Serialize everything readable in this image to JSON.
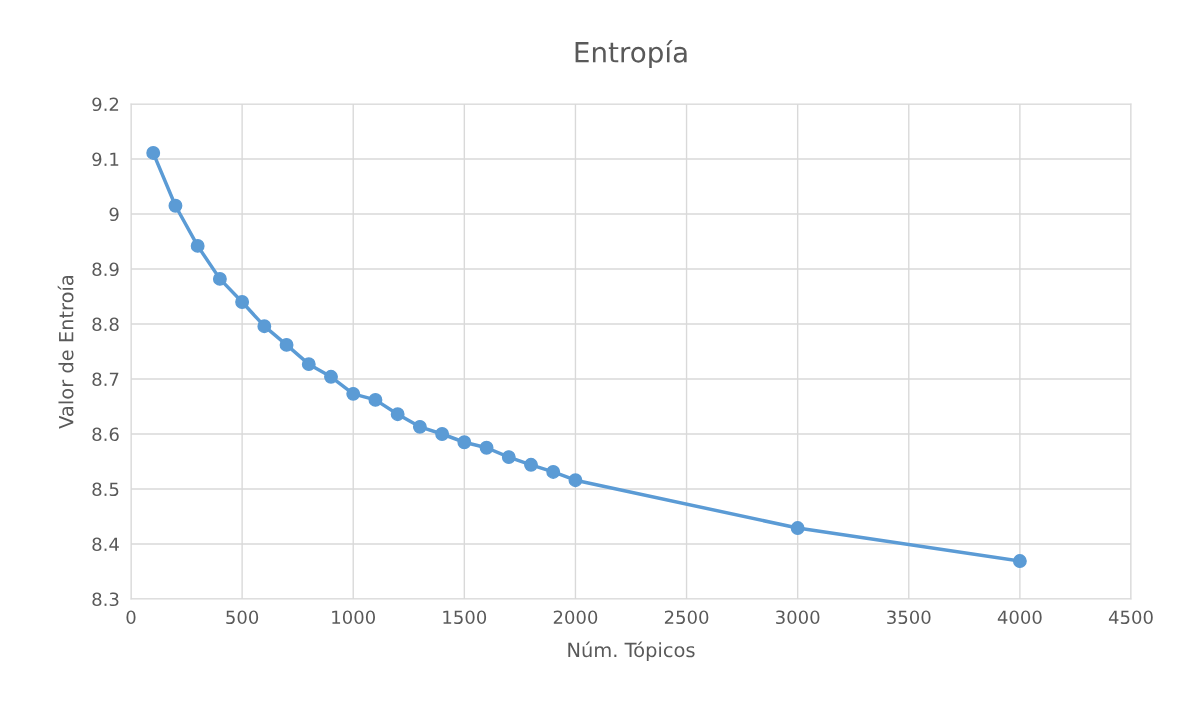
{
  "chart_data": {
    "type": "line",
    "title": "Entropía",
    "xlabel": "Núm. Tópicos",
    "ylabel": "Valor de Entroía",
    "x": [
      100,
      200,
      300,
      400,
      500,
      600,
      700,
      800,
      900,
      1000,
      1100,
      1200,
      1300,
      1400,
      1500,
      1600,
      1700,
      1800,
      1900,
      2000,
      3000,
      4000
    ],
    "series": [
      {
        "color": "#5b9bd5",
        "values": [
          9.111,
          9.015,
          8.942,
          8.882,
          8.84,
          8.796,
          8.762,
          8.727,
          8.704,
          8.673,
          8.662,
          8.636,
          8.613,
          8.6,
          8.585,
          8.575,
          8.558,
          8.544,
          8.531,
          8.516,
          8.429,
          8.369
        ]
      }
    ],
    "xlim": [
      0,
      4500
    ],
    "xticks": [
      0,
      500,
      1000,
      1500,
      2000,
      2500,
      3000,
      3500,
      4000,
      4500
    ],
    "ylim": [
      8.3,
      9.2
    ],
    "yticks": [
      8.3,
      8.4,
      8.5,
      8.6,
      8.7,
      8.8,
      8.9,
      9,
      9.1,
      9.2
    ],
    "grid": true,
    "marker": "circle",
    "line_style": "solid"
  }
}
